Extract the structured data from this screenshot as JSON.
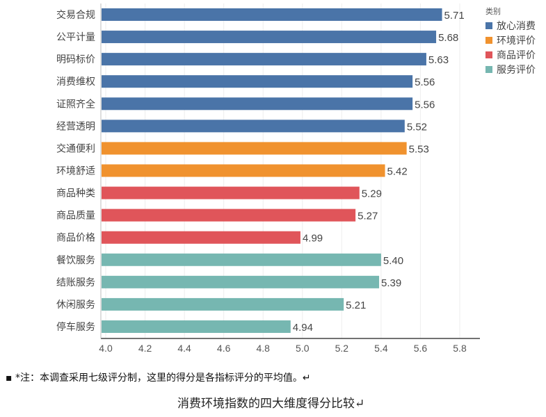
{
  "chart_data": {
    "type": "bar",
    "orientation": "horizontal",
    "title": "消费环境指数的四大维度得分比较",
    "xlim": [
      4.0,
      5.8
    ],
    "xticks": [
      "4.0",
      "4.2",
      "4.4",
      "4.6",
      "4.8",
      "5.0",
      "5.2",
      "5.4",
      "5.6",
      "5.8"
    ],
    "grid": true,
    "legend_title": "类别",
    "legend_position": "top-right",
    "legend": [
      {
        "name": "放心消费",
        "color": "#4a74a8"
      },
      {
        "name": "环境评价",
        "color": "#f0922e"
      },
      {
        "name": "商品评价",
        "color": "#e0555a"
      },
      {
        "name": "服务评价",
        "color": "#76b7b1"
      }
    ],
    "bars": [
      {
        "label": "交易合规",
        "value": 5.71,
        "text": "5.71",
        "group": 0
      },
      {
        "label": "公平计量",
        "value": 5.68,
        "text": "5.68",
        "group": 0
      },
      {
        "label": "明码标价",
        "value": 5.63,
        "text": "5.63",
        "group": 0
      },
      {
        "label": "消费维权",
        "value": 5.56,
        "text": "5.56",
        "group": 0
      },
      {
        "label": "证照齐全",
        "value": 5.56,
        "text": "5.56",
        "group": 0
      },
      {
        "label": "经营透明",
        "value": 5.52,
        "text": "5.52",
        "group": 0
      },
      {
        "label": "交通便利",
        "value": 5.53,
        "text": "5.53",
        "group": 1
      },
      {
        "label": "环境舒适",
        "value": 5.42,
        "text": "5.42",
        "group": 1
      },
      {
        "label": "商品种类",
        "value": 5.29,
        "text": "5.29",
        "group": 2
      },
      {
        "label": "商品质量",
        "value": 5.27,
        "text": "5.27",
        "group": 2
      },
      {
        "label": "商品价格",
        "value": 4.99,
        "text": "4.99",
        "group": 2
      },
      {
        "label": "餐饮服务",
        "value": 5.4,
        "text": "5.40",
        "group": 3
      },
      {
        "label": "结账服务",
        "value": 5.39,
        "text": "5.39",
        "group": 3
      },
      {
        "label": "休闲服务",
        "value": 5.21,
        "text": "5.21",
        "group": 3
      },
      {
        "label": "停车服务",
        "value": 4.94,
        "text": "4.94",
        "group": 3
      }
    ]
  },
  "note": "▪ *注：本调查采用七级评分制，这里的得分是各指标评分的平均值。↵",
  "caption": "消费环境指数的四大维度得分比较↵"
}
